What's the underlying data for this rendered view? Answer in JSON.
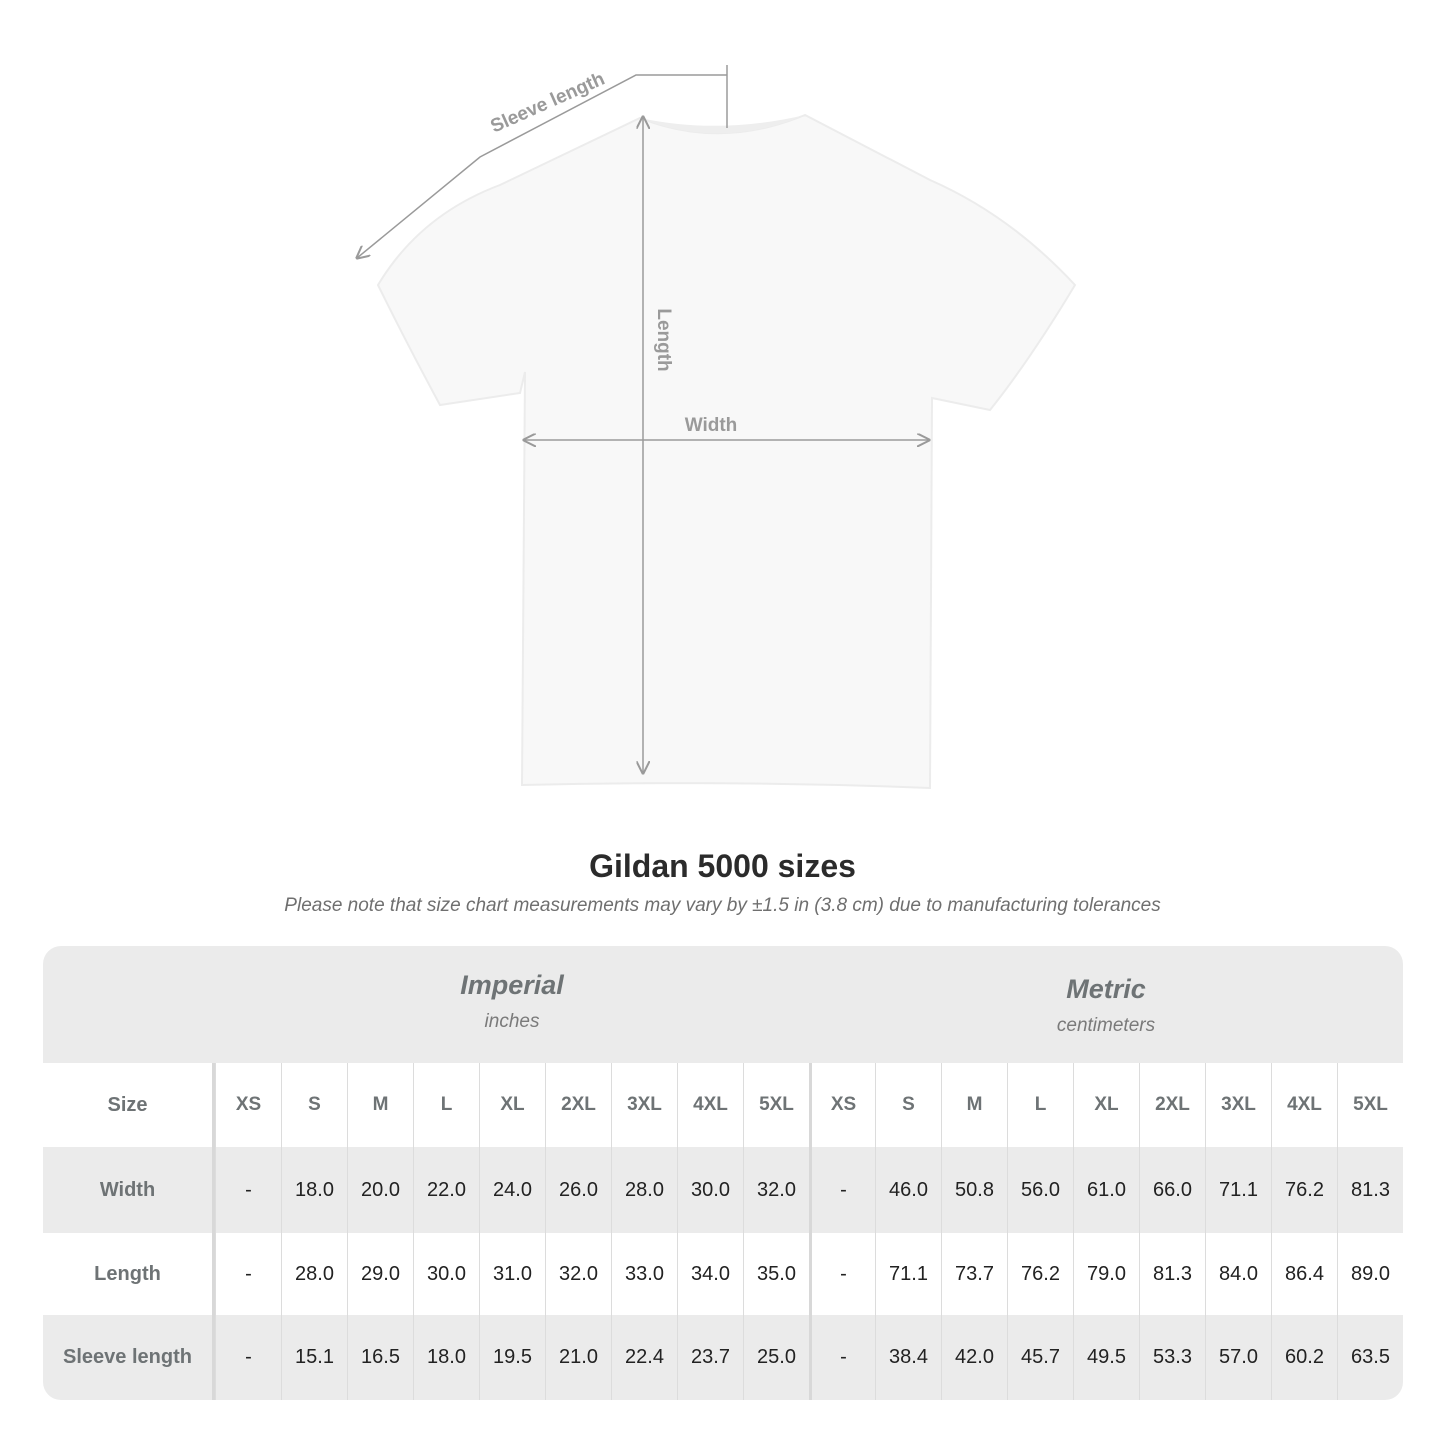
{
  "diagram": {
    "labels": {
      "sleeve": "Sleeve length",
      "length": "Length",
      "width": "Width"
    },
    "colors": {
      "shirt": "#f8f8f8",
      "lines": "#9a9a9a"
    }
  },
  "title": "Gildan 5000 sizes",
  "note": "Please note that size chart measurements may vary by ±1.5 in (3.8 cm) due to manufacturing tolerances",
  "table": {
    "imperial": {
      "name": "Imperial",
      "unit": "inches"
    },
    "metric": {
      "name": "Metric",
      "unit": "centimeters"
    },
    "size_label": "Size",
    "sizes": [
      "XS",
      "S",
      "M",
      "L",
      "XL",
      "2XL",
      "3XL",
      "4XL",
      "5XL"
    ],
    "rows": [
      {
        "label": "Width",
        "imperial": [
          "-",
          "18.0",
          "20.0",
          "22.0",
          "24.0",
          "26.0",
          "28.0",
          "30.0",
          "32.0"
        ],
        "metric": [
          "-",
          "46.0",
          "50.8",
          "56.0",
          "61.0",
          "66.0",
          "71.1",
          "76.2",
          "81.3"
        ]
      },
      {
        "label": "Length",
        "imperial": [
          "-",
          "28.0",
          "29.0",
          "30.0",
          "31.0",
          "32.0",
          "33.0",
          "34.0",
          "35.0"
        ],
        "metric": [
          "-",
          "71.1",
          "73.7",
          "76.2",
          "79.0",
          "81.3",
          "84.0",
          "86.4",
          "89.0"
        ]
      },
      {
        "label": "Sleeve length",
        "imperial": [
          "-",
          "15.1",
          "16.5",
          "18.0",
          "19.5",
          "21.0",
          "22.4",
          "23.7",
          "25.0"
        ],
        "metric": [
          "-",
          "38.4",
          "42.0",
          "45.7",
          "49.5",
          "53.3",
          "57.0",
          "60.2",
          "63.5"
        ]
      }
    ]
  }
}
